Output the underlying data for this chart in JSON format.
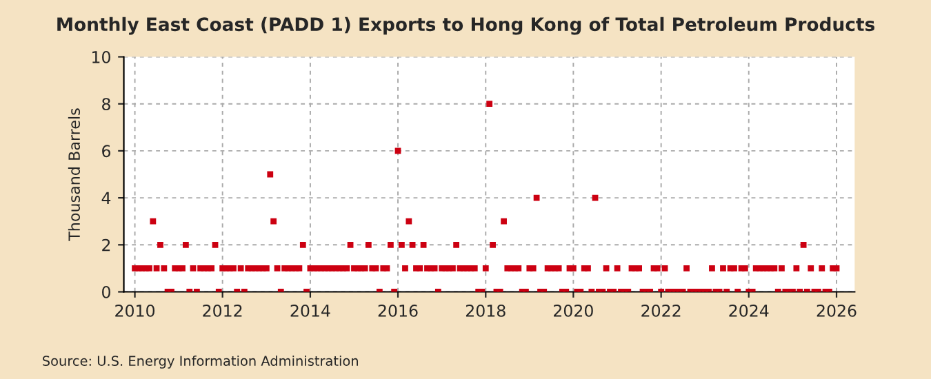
{
  "chart_data": {
    "type": "scatter",
    "title": "Monthly East Coast (PADD 1) Exports to Hong Kong of Total Petroleum Products",
    "ylabel": "Thousand Barrels",
    "annotations": [
      "Source: U.S. Energy Information Administration"
    ],
    "x": [
      "2010-01",
      "2010-02",
      "2010-03",
      "2010-04",
      "2010-05",
      "2010-06",
      "2010-07",
      "2010-08",
      "2010-09",
      "2010-10",
      "2010-11",
      "2010-12",
      "2011-01",
      "2011-02",
      "2011-03",
      "2011-04",
      "2011-05",
      "2011-06",
      "2011-07",
      "2011-08",
      "2011-09",
      "2011-10",
      "2011-11",
      "2011-12",
      "2012-01",
      "2012-02",
      "2012-03",
      "2012-04",
      "2012-05",
      "2012-06",
      "2012-07",
      "2012-08",
      "2012-09",
      "2012-10",
      "2012-11",
      "2012-12",
      "2013-01",
      "2013-02",
      "2013-03",
      "2013-04",
      "2013-05",
      "2013-06",
      "2013-07",
      "2013-08",
      "2013-09",
      "2013-10",
      "2013-11",
      "2013-12",
      "2014-01",
      "2014-02",
      "2014-03",
      "2014-04",
      "2014-05",
      "2014-06",
      "2014-07",
      "2014-08",
      "2014-09",
      "2014-10",
      "2014-11",
      "2014-12",
      "2015-01",
      "2015-02",
      "2015-03",
      "2015-04",
      "2015-05",
      "2015-06",
      "2015-07",
      "2015-08",
      "2015-09",
      "2015-10",
      "2015-11",
      "2015-12",
      "2016-01",
      "2016-02",
      "2016-03",
      "2016-04",
      "2016-05",
      "2016-06",
      "2016-07",
      "2016-08",
      "2016-09",
      "2016-10",
      "2016-11",
      "2016-12",
      "2017-01",
      "2017-02",
      "2017-03",
      "2017-04",
      "2017-05",
      "2017-06",
      "2017-07",
      "2017-08",
      "2017-09",
      "2017-10",
      "2017-11",
      "2017-12",
      "2018-01",
      "2018-02",
      "2018-03",
      "2018-04",
      "2018-05",
      "2018-06",
      "2018-07",
      "2018-08",
      "2018-09",
      "2018-10",
      "2018-11",
      "2018-12",
      "2019-01",
      "2019-02",
      "2019-03",
      "2019-04",
      "2019-05",
      "2019-06",
      "2019-07",
      "2019-08",
      "2019-09",
      "2019-10",
      "2019-11",
      "2019-12",
      "2020-01",
      "2020-02",
      "2020-03",
      "2020-04",
      "2020-05",
      "2020-06",
      "2020-07",
      "2020-08",
      "2020-09",
      "2020-10",
      "2020-11",
      "2020-12",
      "2021-01",
      "2021-02",
      "2021-03",
      "2021-04",
      "2021-05",
      "2021-06",
      "2021-07",
      "2021-08",
      "2021-09",
      "2021-10",
      "2021-11",
      "2021-12",
      "2022-01",
      "2022-02",
      "2022-03",
      "2022-04",
      "2022-05",
      "2022-06",
      "2022-07",
      "2022-08",
      "2022-09",
      "2022-10",
      "2022-11",
      "2022-12",
      "2023-01",
      "2023-02",
      "2023-03",
      "2023-04",
      "2023-05",
      "2023-06",
      "2023-07",
      "2023-08",
      "2023-09",
      "2023-10",
      "2023-11",
      "2023-12",
      "2024-01",
      "2024-02",
      "2024-03",
      "2024-04",
      "2024-05",
      "2024-06",
      "2024-07",
      "2024-08",
      "2024-09",
      "2024-10",
      "2024-11",
      "2024-12",
      "2025-01",
      "2025-02",
      "2025-03",
      "2025-04",
      "2025-05",
      "2025-06",
      "2025-07",
      "2025-08",
      "2025-09",
      "2025-10",
      "2025-11",
      "2025-12",
      "2026-01"
    ],
    "series": [
      {
        "color": "#cc0011",
        "values": [
          1,
          1,
          1,
          1,
          1,
          3,
          1,
          2,
          1,
          0,
          0,
          1,
          1,
          1,
          2,
          0,
          1,
          0,
          1,
          1,
          1,
          1,
          2,
          0,
          1,
          1,
          1,
          1,
          0,
          1,
          0,
          1,
          1,
          1,
          1,
          1,
          1,
          5,
          3,
          1,
          0,
          1,
          1,
          1,
          1,
          1,
          2,
          0,
          1,
          1,
          1,
          1,
          1,
          1,
          1,
          1,
          1,
          1,
          1,
          2,
          1,
          1,
          1,
          1,
          2,
          1,
          1,
          0,
          1,
          1,
          2,
          0,
          6,
          2,
          1,
          3,
          2,
          1,
          1,
          2,
          1,
          1,
          1,
          0,
          1,
          1,
          1,
          1,
          2,
          1,
          1,
          1,
          1,
          1,
          0,
          0,
          1,
          8,
          2,
          0,
          0,
          3,
          1,
          1,
          1,
          1,
          0,
          0,
          1,
          1,
          4,
          0,
          0,
          1,
          1,
          1,
          1,
          0,
          0,
          1,
          1,
          0,
          0,
          1,
          1,
          0,
          4,
          0,
          0,
          1,
          0,
          0,
          1,
          0,
          0,
          0,
          1,
          1,
          1,
          0,
          0,
          0,
          1,
          1,
          0,
          1,
          0,
          0,
          0,
          0,
          0,
          1,
          0,
          0,
          0,
          0,
          0,
          0,
          1,
          0,
          0,
          1,
          0,
          1,
          1,
          0,
          1,
          1,
          0,
          0,
          1,
          1,
          1,
          1,
          1,
          1,
          0,
          1,
          0,
          0,
          0,
          1,
          0,
          2,
          0,
          1,
          0,
          0,
          1,
          0,
          0,
          1,
          1
        ]
      }
    ],
    "xlim": [
      "2009-10",
      "2026-06"
    ],
    "xticks": [
      "2010",
      "2012",
      "2014",
      "2016",
      "2018",
      "2020",
      "2022",
      "2024",
      "2026"
    ],
    "ylim": [
      0,
      10
    ],
    "yticks": [
      0,
      2,
      4,
      6,
      8,
      10
    ],
    "grid": true,
    "marker": "square"
  }
}
